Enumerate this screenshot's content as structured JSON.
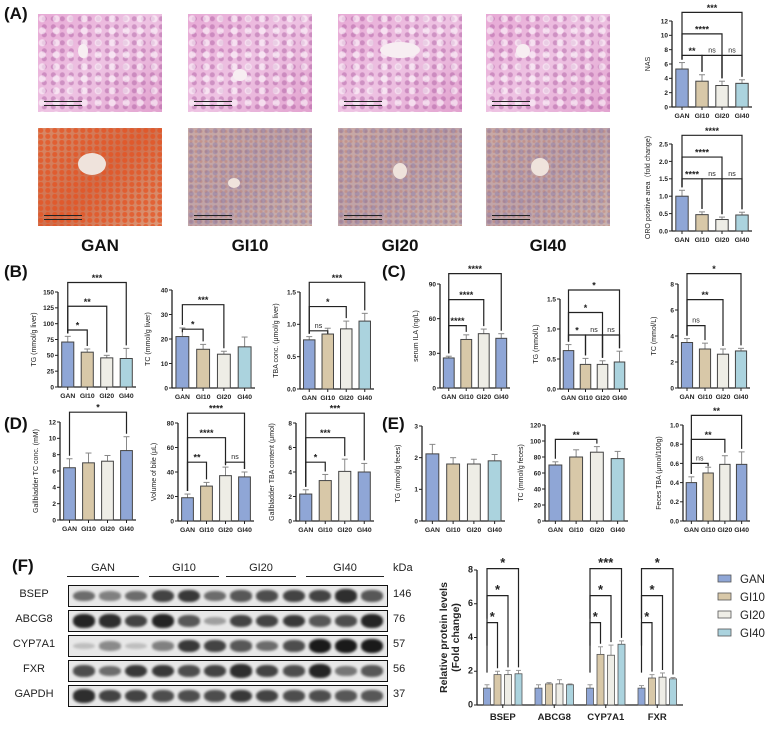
{
  "panels": {
    "A": "(A)",
    "B": "(B)",
    "C": "(C)",
    "D": "(D)",
    "E": "(E)",
    "F": "(F)"
  },
  "panel_a": {
    "group_labels": [
      "GAN",
      "GI10",
      "GI20",
      "GI40"
    ]
  },
  "colors": {
    "GAN": "#8fa6d6",
    "GI10": "#d8c8a8",
    "GI20": "#eeede6",
    "GI40": "#abd3de",
    "edge": "#333333"
  },
  "western_blot": {
    "groups": [
      "GAN",
      "GI10",
      "GI20",
      "GI40"
    ],
    "unit": "kDa",
    "proteins": [
      {
        "name": "BSEP",
        "kda": "146"
      },
      {
        "name": "ABCG8",
        "kda": "76"
      },
      {
        "name": "CYP7A1",
        "kda": "57"
      },
      {
        "name": "FXR",
        "kda": "56"
      },
      {
        "name": "GAPDH",
        "kda": "37"
      }
    ]
  },
  "chart_data": [
    {
      "id": "A-NAS",
      "type": "bar",
      "categories": [
        "GAN",
        "GI10",
        "GI20",
        "GI40"
      ],
      "values": [
        5.3,
        3.6,
        3.0,
        3.3
      ],
      "errors": [
        0.9,
        0.9,
        0.6,
        0.5
      ],
      "ylabel": "NAS",
      "ylim": [
        0,
        12
      ],
      "yticks": [
        "0",
        "2",
        "4",
        "6",
        "8",
        "10",
        "12"
      ],
      "colors": [
        "#8fa6d6",
        "#d8c8a8",
        "#eeede6",
        "#abd3de"
      ],
      "brackets": [
        {
          "from": 0,
          "to": 1,
          "label": "**"
        },
        {
          "from": 1,
          "to": 2,
          "label": "ns"
        },
        {
          "from": 2,
          "to": 3,
          "label": "ns"
        },
        {
          "from": 0,
          "to": 2,
          "label": "****"
        },
        {
          "from": 0,
          "to": 3,
          "label": "***"
        }
      ]
    },
    {
      "id": "A-ORO",
      "type": "bar",
      "categories": [
        "GAN",
        "GI10",
        "GI20",
        "GI40"
      ],
      "values": [
        1.0,
        0.47,
        0.33,
        0.46
      ],
      "errors": [
        0.17,
        0.08,
        0.07,
        0.08
      ],
      "ylabel": "ORO positive area（fold change)",
      "ylim": [
        0,
        2.5
      ],
      "yticks": [
        "0.0",
        "0.5",
        "1.0",
        "1.5",
        "2.0",
        "2.5"
      ],
      "colors": [
        "#8fa6d6",
        "#d8c8a8",
        "#eeede6",
        "#abd3de"
      ],
      "brackets": [
        {
          "from": 0,
          "to": 1,
          "label": "****"
        },
        {
          "from": 1,
          "to": 2,
          "label": "ns"
        },
        {
          "from": 2,
          "to": 3,
          "label": "ns"
        },
        {
          "from": 0,
          "to": 2,
          "label": "****"
        },
        {
          "from": 0,
          "to": 3,
          "label": "****"
        }
      ]
    },
    {
      "id": "B-TG",
      "type": "bar",
      "categories": [
        "GAN",
        "GI10",
        "GI20",
        "GI40"
      ],
      "values": [
        71,
        55,
        46,
        45
      ],
      "errors": [
        9,
        5,
        4,
        16
      ],
      "ylabel": "TG (mmol/g liver)",
      "ylim": [
        0,
        150
      ],
      "yticks": [
        "0",
        "25",
        "50",
        "75",
        "100",
        "125",
        "150"
      ],
      "colors": [
        "#8fa6d6",
        "#d8c8a8",
        "#eeede6",
        "#abd3de"
      ],
      "brackets": [
        {
          "from": 0,
          "to": 1,
          "label": "*"
        },
        {
          "from": 0,
          "to": 2,
          "label": "**"
        },
        {
          "from": 0,
          "to": 3,
          "label": "***"
        }
      ]
    },
    {
      "id": "B-TC",
      "type": "bar",
      "categories": [
        "GAN",
        "GI10",
        "GI20",
        "GI40"
      ],
      "values": [
        21,
        15.8,
        13.8,
        16.8
      ],
      "errors": [
        3.5,
        2,
        1.2,
        4
      ],
      "ylabel": "TC (mmol/g liver)",
      "ylim": [
        0,
        40
      ],
      "yticks": [
        "0",
        "10",
        "20",
        "30",
        "40"
      ],
      "colors": [
        "#8fa6d6",
        "#d8c8a8",
        "#eeede6",
        "#abd3de"
      ],
      "brackets": [
        {
          "from": 0,
          "to": 1,
          "label": "*"
        },
        {
          "from": 0,
          "to": 2,
          "label": "***"
        }
      ]
    },
    {
      "id": "B-TBA",
      "type": "bar",
      "categories": [
        "GAN",
        "GI10",
        "GI20",
        "GI40"
      ],
      "values": [
        0.76,
        0.85,
        0.93,
        1.05
      ],
      "errors": [
        0.05,
        0.09,
        0.12,
        0.12
      ],
      "ylabel": "TBA conc. (μmol/g liver)",
      "ylim": [
        0,
        1.5
      ],
      "yticks": [
        "0.0",
        "0.5",
        "1.0",
        "1.5"
      ],
      "colors": [
        "#8fa6d6",
        "#d8c8a8",
        "#eeede6",
        "#abd3de"
      ],
      "brackets": [
        {
          "from": 0,
          "to": 1,
          "label": "ns"
        },
        {
          "from": 0,
          "to": 2,
          "label": "*"
        },
        {
          "from": 0,
          "to": 3,
          "label": "***"
        }
      ]
    },
    {
      "id": "C-ILA",
      "type": "bar",
      "categories": [
        "GAN",
        "GI10",
        "GI20",
        "GI40"
      ],
      "values": [
        26,
        42,
        47,
        43
      ],
      "errors": [
        1.5,
        4,
        4,
        4
      ],
      "ylabel": "serum ILA  (ng/L)",
      "ylim": [
        0,
        90
      ],
      "yticks": [
        "0",
        "30",
        "60",
        "90"
      ],
      "colors": [
        "#8fa6d6",
        "#d8c8a8",
        "#eeede6",
        "#8fa6d6"
      ],
      "brackets": [
        {
          "from": 0,
          "to": 1,
          "label": "****"
        },
        {
          "from": 0,
          "to": 2,
          "label": "****"
        },
        {
          "from": 0,
          "to": 3,
          "label": "****"
        }
      ]
    },
    {
      "id": "C-TG",
      "type": "bar",
      "categories": [
        "GAN",
        "GI10",
        "GI20",
        "GI40"
      ],
      "values": [
        0.64,
        0.41,
        0.41,
        0.45
      ],
      "errors": [
        0.1,
        0.1,
        0.06,
        0.18
      ],
      "ylabel": "TG (mmol/L)",
      "ylim": [
        0,
        1.5
      ],
      "yticks": [
        "0.0",
        "0.5",
        "1.0",
        "1.5"
      ],
      "colors": [
        "#8fa6d6",
        "#d8c8a8",
        "#eeede6",
        "#abd3de"
      ],
      "brackets": [
        {
          "from": 0,
          "to": 1,
          "label": "*"
        },
        {
          "from": 1,
          "to": 2,
          "label": "ns"
        },
        {
          "from": 2,
          "to": 3,
          "label": "ns"
        },
        {
          "from": 0,
          "to": 2,
          "label": "*"
        },
        {
          "from": 0,
          "to": 3,
          "label": "*"
        }
      ]
    },
    {
      "id": "C-TC",
      "type": "bar",
      "categories": [
        "GAN",
        "GI10",
        "GI20",
        "GI40"
      ],
      "values": [
        3.5,
        3.0,
        2.6,
        2.85
      ],
      "errors": [
        0.3,
        0.45,
        0.4,
        0.2
      ],
      "ylabel": "TC (mmol/L)",
      "ylim": [
        0,
        8
      ],
      "yticks": [
        "0",
        "2",
        "4",
        "6",
        "8"
      ],
      "colors": [
        "#8fa6d6",
        "#d8c8a8",
        "#eeede6",
        "#abd3de"
      ],
      "brackets": [
        {
          "from": 0,
          "to": 1,
          "label": "ns"
        },
        {
          "from": 0,
          "to": 2,
          "label": "**"
        },
        {
          "from": 0,
          "to": 3,
          "label": "*"
        }
      ]
    },
    {
      "id": "D-GBTC",
      "type": "bar",
      "categories": [
        "GAN",
        "GI10",
        "GI20",
        "GI40"
      ],
      "values": [
        6.4,
        7.0,
        7.2,
        8.5
      ],
      "errors": [
        1.1,
        1.2,
        0.7,
        1.7
      ],
      "ylabel": "Gallbladder TC conc. (mM)",
      "ylim": [
        0,
        12
      ],
      "yticks": [
        "0",
        "2",
        "4",
        "6",
        "8",
        "10",
        "12"
      ],
      "colors": [
        "#8fa6d6",
        "#d8c8a8",
        "#eeede6",
        "#8fa6d6"
      ],
      "brackets": [
        {
          "from": 0,
          "to": 3,
          "label": "*"
        }
      ]
    },
    {
      "id": "D-bile",
      "type": "bar",
      "categories": [
        "GAN",
        "GI10",
        "GI20",
        "GI40"
      ],
      "values": [
        19,
        28.5,
        37,
        36
      ],
      "errors": [
        3,
        3,
        7,
        4
      ],
      "ylabel": "Volume of bile (μL)",
      "ylim": [
        0,
        80
      ],
      "yticks": [
        "0",
        "20",
        "40",
        "60",
        "80"
      ],
      "colors": [
        "#8fa6d6",
        "#d8c8a8",
        "#eeede6",
        "#8fa6d6"
      ],
      "brackets": [
        {
          "from": 0,
          "to": 1,
          "label": "**"
        },
        {
          "from": 2,
          "to": 3,
          "label": "ns"
        },
        {
          "from": 0,
          "to": 2,
          "label": "****"
        },
        {
          "from": 0,
          "to": 3,
          "label": "****"
        }
      ]
    },
    {
      "id": "D-GBTBA",
      "type": "bar",
      "categories": [
        "GAN",
        "GI10",
        "GI20",
        "GI40"
      ],
      "values": [
        2.2,
        3.3,
        4.05,
        4.0
      ],
      "errors": [
        0.35,
        0.5,
        1.0,
        0.7
      ],
      "ylabel": "Gallbladder TBA content (μmol)",
      "ylim": [
        0,
        8
      ],
      "yticks": [
        "0",
        "2",
        "4",
        "6",
        "8"
      ],
      "colors": [
        "#8fa6d6",
        "#d8c8a8",
        "#eeede6",
        "#8fa6d6"
      ],
      "brackets": [
        {
          "from": 0,
          "to": 1,
          "label": "*"
        },
        {
          "from": 0,
          "to": 2,
          "label": "***"
        },
        {
          "from": 0,
          "to": 3,
          "label": "***"
        }
      ]
    },
    {
      "id": "E-TG",
      "type": "bar",
      "categories": [
        "GAN",
        "GI10",
        "GI20",
        "GI40"
      ],
      "values": [
        2.12,
        1.8,
        1.8,
        1.9
      ],
      "errors": [
        0.3,
        0.2,
        0.15,
        0.2
      ],
      "ylabel": "TG (mmol/g feces)",
      "ylim": [
        0,
        3
      ],
      "yticks": [
        "0",
        "1",
        "2",
        "3"
      ],
      "colors": [
        "#8fa6d6",
        "#d8c8a8",
        "#eeede6",
        "#abd3de"
      ],
      "brackets": []
    },
    {
      "id": "E-TC",
      "type": "bar",
      "categories": [
        "GAN",
        "GI10",
        "GI20",
        "GI40"
      ],
      "values": [
        70,
        80,
        86,
        78
      ],
      "errors": [
        4,
        9,
        7,
        9
      ],
      "ylabel": "TC (mmol/g feces)",
      "ylim": [
        0,
        120
      ],
      "yticks": [
        "0",
        "20",
        "40",
        "60",
        "80",
        "100",
        "120"
      ],
      "colors": [
        "#8fa6d6",
        "#d8c8a8",
        "#eeede6",
        "#abd3de"
      ],
      "brackets": [
        {
          "from": 0,
          "to": 2,
          "label": "**"
        }
      ]
    },
    {
      "id": "E-FTBA",
      "type": "bar",
      "categories": [
        "GAN",
        "GI10",
        "GI20",
        "GI40"
      ],
      "values": [
        0.4,
        0.5,
        0.59,
        0.59
      ],
      "errors": [
        0.06,
        0.06,
        0.09,
        0.13
      ],
      "ylabel": "Feces TBA (μmol/100g)",
      "ylim": [
        0,
        1.0
      ],
      "yticks": [
        "0.0",
        "0.2",
        "0.4",
        "0.6",
        "0.8",
        "1.0"
      ],
      "colors": [
        "#8fa6d6",
        "#d8c8a8",
        "#eeede6",
        "#8fa6d6"
      ],
      "brackets": [
        {
          "from": 0,
          "to": 1,
          "label": "ns"
        },
        {
          "from": 0,
          "to": 2,
          "label": "**"
        },
        {
          "from": 0,
          "to": 3,
          "label": "**"
        }
      ]
    },
    {
      "id": "F-protein",
      "type": "bar",
      "grouped": true,
      "categories": [
        "BSEP",
        "ABCG8",
        "CYP7A1",
        "FXR"
      ],
      "series": [
        {
          "name": "GAN",
          "values": [
            1,
            1,
            1,
            1
          ],
          "errors": [
            0.2,
            0.2,
            0.2,
            0.15
          ],
          "color": "#8fa6d6"
        },
        {
          "name": "GI10",
          "values": [
            1.8,
            1.25,
            3.0,
            1.6
          ],
          "errors": [
            0.2,
            0.08,
            0.45,
            0.2
          ],
          "color": "#d8c8a8"
        },
        {
          "name": "GI20",
          "values": [
            1.8,
            1.25,
            2.95,
            1.65
          ],
          "errors": [
            0.25,
            0.25,
            0.6,
            0.25
          ],
          "color": "#eeede6"
        },
        {
          "name": "GI40",
          "values": [
            1.85,
            1.2,
            3.6,
            1.55
          ],
          "errors": [
            0.2,
            0.05,
            0.2,
            0.08
          ],
          "color": "#abd3de"
        }
      ],
      "ylabel": [
        "Relative protein levels",
        "(Fold change)"
      ],
      "ylim": [
        0,
        8
      ],
      "yticks": [
        "0",
        "2",
        "4",
        "6",
        "8"
      ],
      "legend": "right",
      "brackets": [
        {
          "group": 0,
          "from": 0,
          "to": 1,
          "label": "*"
        },
        {
          "group": 0,
          "from": 0,
          "to": 2,
          "label": "*"
        },
        {
          "group": 0,
          "from": 0,
          "to": 3,
          "label": "*"
        },
        {
          "group": 2,
          "from": 0,
          "to": 1,
          "label": "*"
        },
        {
          "group": 2,
          "from": 0,
          "to": 2,
          "label": "*"
        },
        {
          "group": 2,
          "from": 0,
          "to": 3,
          "label": "***"
        },
        {
          "group": 3,
          "from": 0,
          "to": 1,
          "label": "*"
        },
        {
          "group": 3,
          "from": 0,
          "to": 2,
          "label": "*"
        },
        {
          "group": 3,
          "from": 0,
          "to": 3,
          "label": "*"
        }
      ]
    }
  ]
}
